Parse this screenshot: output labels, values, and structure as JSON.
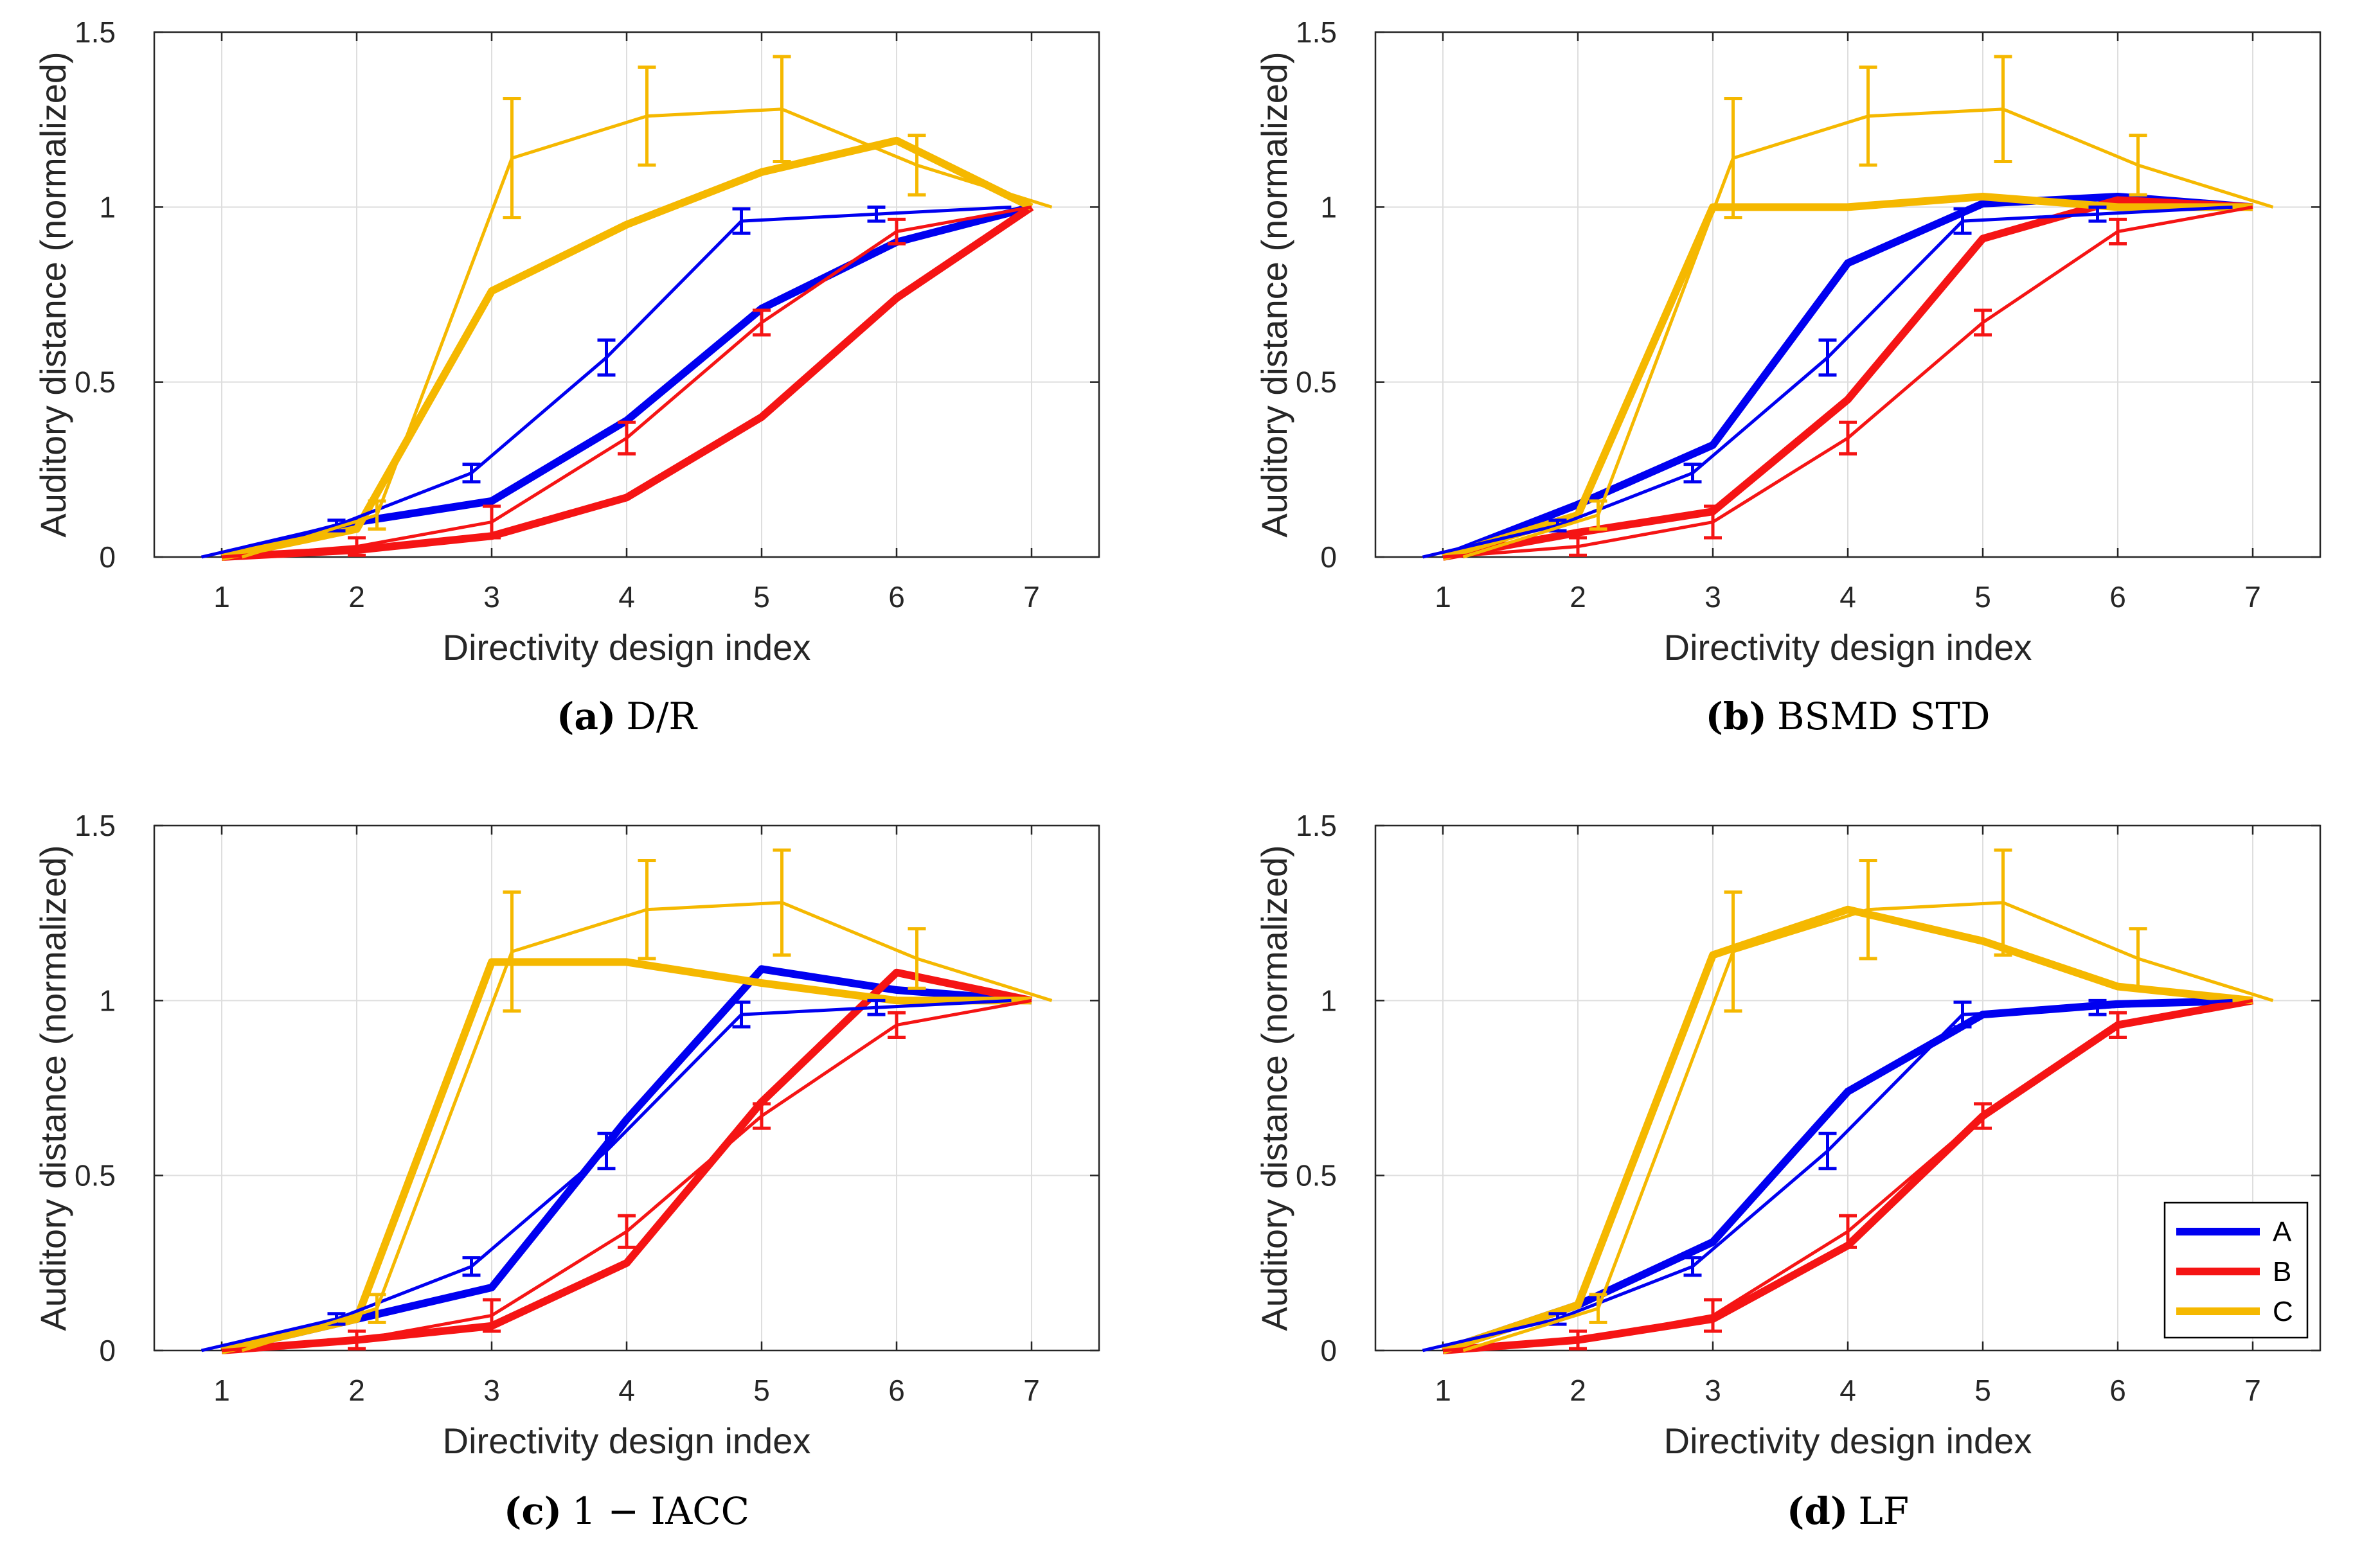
{
  "colors": {
    "A": "#0000f0",
    "B": "#f51414",
    "C": "#f5b800",
    "grid": "#dedede",
    "axis": "#262626"
  },
  "measured": {
    "x": [
      1,
      2,
      3,
      4,
      5,
      6,
      7
    ],
    "series": [
      {
        "name": "A",
        "offset": -0.15,
        "values": [
          0.0,
          0.09,
          0.24,
          0.57,
          0.96,
          0.98,
          1.0
        ],
        "err": [
          0.0,
          0.015,
          0.025,
          0.05,
          0.035,
          0.02,
          0.0
        ]
      },
      {
        "name": "B",
        "offset": 0.0,
        "values": [
          0.0,
          0.03,
          0.1,
          0.34,
          0.67,
          0.93,
          1.0
        ],
        "err": [
          0.0,
          0.025,
          0.045,
          0.045,
          0.035,
          0.035,
          0.0
        ]
      },
      {
        "name": "C",
        "offset": 0.15,
        "values": [
          0.0,
          0.12,
          1.14,
          1.26,
          1.28,
          1.12,
          1.0
        ],
        "err": [
          0.0,
          0.04,
          0.17,
          0.14,
          0.15,
          0.085,
          0.0
        ]
      }
    ]
  },
  "chart_data": [
    {
      "id": "a",
      "type": "line",
      "caption_letter": "(a)",
      "caption_text": "D/R",
      "xlabel": "Directivity design index",
      "ylabel": "Auditory distance (normalized)",
      "xticks": [
        "1",
        "2",
        "3",
        "4",
        "5",
        "6",
        "7"
      ],
      "yticks": [
        "0",
        "0.5",
        "1",
        "1.5"
      ],
      "xlim": [
        0.5,
        7.5
      ],
      "ylim": [
        0,
        1.5
      ],
      "grid": true,
      "series": [
        {
          "name": "A",
          "values": [
            0.0,
            0.1,
            0.16,
            0.39,
            0.71,
            0.9,
            1.0
          ]
        },
        {
          "name": "B",
          "values": [
            0.0,
            0.02,
            0.06,
            0.17,
            0.4,
            0.74,
            1.0
          ]
        },
        {
          "name": "C",
          "values": [
            0.0,
            0.08,
            0.76,
            0.95,
            1.1,
            1.19,
            1.0
          ]
        }
      ]
    },
    {
      "id": "b",
      "type": "line",
      "caption_letter": "(b)",
      "caption_text": "BSMD STD",
      "xlabel": "Directivity design index",
      "ylabel": "Auditory distance (normalized)",
      "xticks": [
        "1",
        "2",
        "3",
        "4",
        "5",
        "6",
        "7"
      ],
      "yticks": [
        "0",
        "0.5",
        "1",
        "1.5"
      ],
      "xlim": [
        0.5,
        7.5
      ],
      "ylim": [
        0,
        1.5
      ],
      "grid": true,
      "series": [
        {
          "name": "A",
          "values": [
            0.0,
            0.15,
            0.32,
            0.84,
            1.01,
            1.03,
            1.0
          ]
        },
        {
          "name": "B",
          "values": [
            0.0,
            0.07,
            0.13,
            0.45,
            0.91,
            1.02,
            1.0
          ]
        },
        {
          "name": "C",
          "values": [
            0.0,
            0.12,
            1.0,
            1.0,
            1.03,
            1.0,
            1.0
          ]
        }
      ]
    },
    {
      "id": "c",
      "type": "line",
      "caption_letter": "(c)",
      "caption_text": "1 − IACC",
      "xlabel": "Directivity design index",
      "ylabel": "Auditory distance (normalized)",
      "xticks": [
        "1",
        "2",
        "3",
        "4",
        "5",
        "6",
        "7"
      ],
      "yticks": [
        "0",
        "0.5",
        "1",
        "1.5"
      ],
      "xlim": [
        0.5,
        7.5
      ],
      "ylim": [
        0,
        1.5
      ],
      "grid": true,
      "series": [
        {
          "name": "A",
          "values": [
            0.0,
            0.09,
            0.18,
            0.66,
            1.09,
            1.03,
            1.0
          ]
        },
        {
          "name": "B",
          "values": [
            0.0,
            0.03,
            0.07,
            0.25,
            0.71,
            1.08,
            1.0
          ]
        },
        {
          "name": "C",
          "values": [
            0.0,
            0.09,
            1.11,
            1.11,
            1.05,
            1.0,
            1.0
          ]
        }
      ]
    },
    {
      "id": "d",
      "type": "line",
      "caption_letter": "(d)",
      "caption_text": "LF",
      "xlabel": "Directivity design index",
      "ylabel": "Auditory distance (normalized)",
      "xticks": [
        "1",
        "2",
        "3",
        "4",
        "5",
        "6",
        "7"
      ],
      "yticks": [
        "0",
        "0.5",
        "1",
        "1.5"
      ],
      "xlim": [
        0.5,
        7.5
      ],
      "ylim": [
        0,
        1.5
      ],
      "grid": true,
      "legend": {
        "placement": "bottom-right",
        "entries": [
          "A",
          "B",
          "C"
        ]
      },
      "series": [
        {
          "name": "A",
          "values": [
            0.0,
            0.13,
            0.31,
            0.74,
            0.96,
            0.99,
            1.0
          ]
        },
        {
          "name": "B",
          "values": [
            0.0,
            0.03,
            0.09,
            0.3,
            0.67,
            0.93,
            1.0
          ]
        },
        {
          "name": "C",
          "values": [
            0.0,
            0.13,
            1.13,
            1.26,
            1.17,
            1.04,
            1.0
          ]
        }
      ]
    }
  ]
}
